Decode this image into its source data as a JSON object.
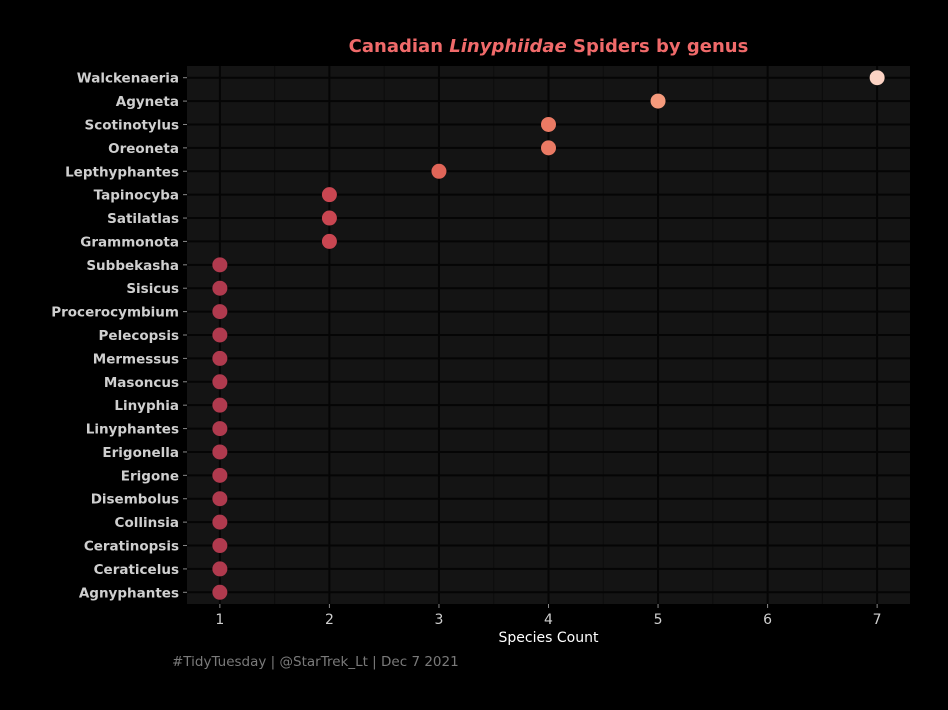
{
  "chart_data": {
    "type": "scatter",
    "title_parts": [
      {
        "text": "Canadian ",
        "italic": false
      },
      {
        "text": "Linyphiidae",
        "italic": true
      },
      {
        "text": " Spiders by genus",
        "italic": false
      }
    ],
    "xlabel": "Species Count",
    "ylabel": "",
    "caption": "#TidyTuesday | @StarTrek_Lt | Dec 7 2021",
    "xlim": [
      0.7,
      7.3
    ],
    "x_ticks": [
      1,
      2,
      3,
      4,
      5,
      6,
      7
    ],
    "grid": true,
    "legend": "none",
    "categories": [
      "Walckenaeria",
      "Agyneta",
      "Scotinotylus",
      "Oreoneta",
      "Lepthyphantes",
      "Tapinocyba",
      "Satilatlas",
      "Grammonota",
      "Subbekasha",
      "Sisicus",
      "Procerocymbium",
      "Pelecopsis",
      "Mermessus",
      "Masoncus",
      "Linyphia",
      "Linyphantes",
      "Erigonella",
      "Erigone",
      "Disembolus",
      "Collinsia",
      "Ceratinopsis",
      "Ceraticelus",
      "Agnyphantes"
    ],
    "values": [
      7,
      5,
      4,
      4,
      3,
      2,
      2,
      2,
      1,
      1,
      1,
      1,
      1,
      1,
      1,
      1,
      1,
      1,
      1,
      1,
      1,
      1,
      1
    ],
    "color_by_value": {
      "1": "#b03a4e",
      "2": "#c94651",
      "3": "#e06558",
      "4": "#ea7a64",
      "5": "#f59a7c",
      "7": "#fcd3c4"
    }
  },
  "colors": {
    "background": "#000000",
    "panel": "#141414",
    "grid_major": "#050505",
    "grid_minor": "#0c0c0c",
    "title": "#f06a6a",
    "axis_text": "#cfcfcf",
    "axis_title": "#ffffff",
    "caption": "#7a7a7a"
  }
}
